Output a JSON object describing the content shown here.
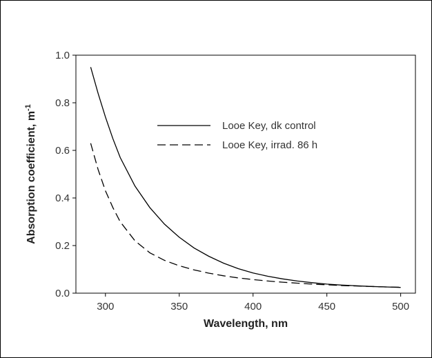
{
  "chart_data": {
    "type": "line",
    "title": "",
    "xlabel": "Wavelength, nm",
    "ylabel": "Absorption coefficient, m",
    "ylabel_sup": "-1",
    "xlim": [
      280,
      510
    ],
    "ylim": [
      0,
      1.0
    ],
    "x_ticks": [
      300,
      350,
      400,
      450,
      500
    ],
    "x_tick_labels": [
      "300",
      "350",
      "400",
      "450",
      "500"
    ],
    "y_ticks": [
      0,
      0.2,
      0.4,
      0.6,
      0.8,
      1.0
    ],
    "y_tick_labels": [
      "0.0",
      "0.2",
      "0.4",
      "0.6",
      "0.8",
      "1.0"
    ],
    "grid": false,
    "legend_position": "upper-right",
    "series": [
      {
        "name": "Looe Key, dk control",
        "style": "solid",
        "color": "#000000",
        "x": [
          290,
          295,
          300,
          305,
          310,
          320,
          330,
          340,
          350,
          360,
          370,
          380,
          390,
          400,
          410,
          420,
          430,
          440,
          450,
          460,
          470,
          480,
          490,
          500
        ],
        "y": [
          0.95,
          0.84,
          0.74,
          0.65,
          0.57,
          0.45,
          0.36,
          0.29,
          0.235,
          0.19,
          0.155,
          0.126,
          0.103,
          0.085,
          0.071,
          0.06,
          0.051,
          0.044,
          0.038,
          0.034,
          0.031,
          0.028,
          0.026,
          0.024
        ]
      },
      {
        "name": "Looe Key, irrad. 86 h",
        "style": "dashed",
        "color": "#000000",
        "x": [
          290,
          295,
          300,
          305,
          310,
          320,
          330,
          340,
          350,
          360,
          370,
          380,
          390,
          400,
          410,
          420,
          430,
          440,
          450,
          460,
          470,
          480,
          490,
          500
        ],
        "y": [
          0.63,
          0.52,
          0.43,
          0.36,
          0.3,
          0.22,
          0.17,
          0.138,
          0.115,
          0.098,
          0.084,
          0.073,
          0.064,
          0.057,
          0.051,
          0.046,
          0.042,
          0.038,
          0.035,
          0.032,
          0.03,
          0.028,
          0.026,
          0.025
        ]
      }
    ]
  }
}
